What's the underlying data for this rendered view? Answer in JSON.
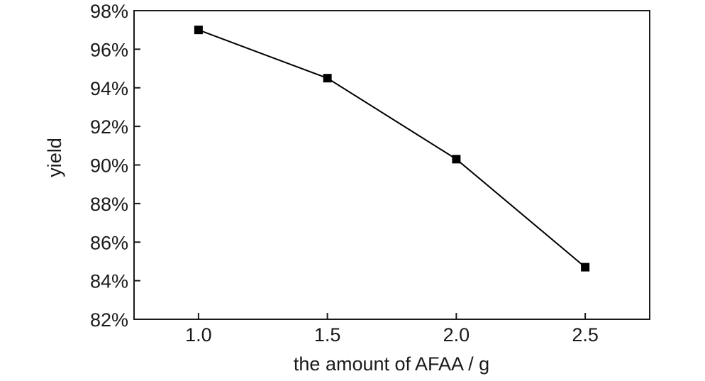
{
  "chart_data": {
    "type": "line",
    "title": "",
    "xlabel": "the amount of AFAA / g",
    "ylabel": "yield",
    "x": [
      1.0,
      1.5,
      2.0,
      2.5
    ],
    "x_tick_labels": [
      "1.0",
      "1.5",
      "2.0",
      "2.5"
    ],
    "xlim": [
      0.75,
      2.75
    ],
    "ylim": [
      82,
      98
    ],
    "y_ticks": [
      82,
      84,
      86,
      88,
      90,
      92,
      94,
      96,
      98
    ],
    "y_tick_labels": [
      "82%",
      "84%",
      "86%",
      "88%",
      "90%",
      "92%",
      "94%",
      "96%",
      "98%"
    ],
    "series": [
      {
        "values": [
          97.0,
          94.5,
          90.3,
          84.7
        ],
        "marker": "square",
        "color": "#000000"
      }
    ],
    "grid": false,
    "legend": "none"
  }
}
